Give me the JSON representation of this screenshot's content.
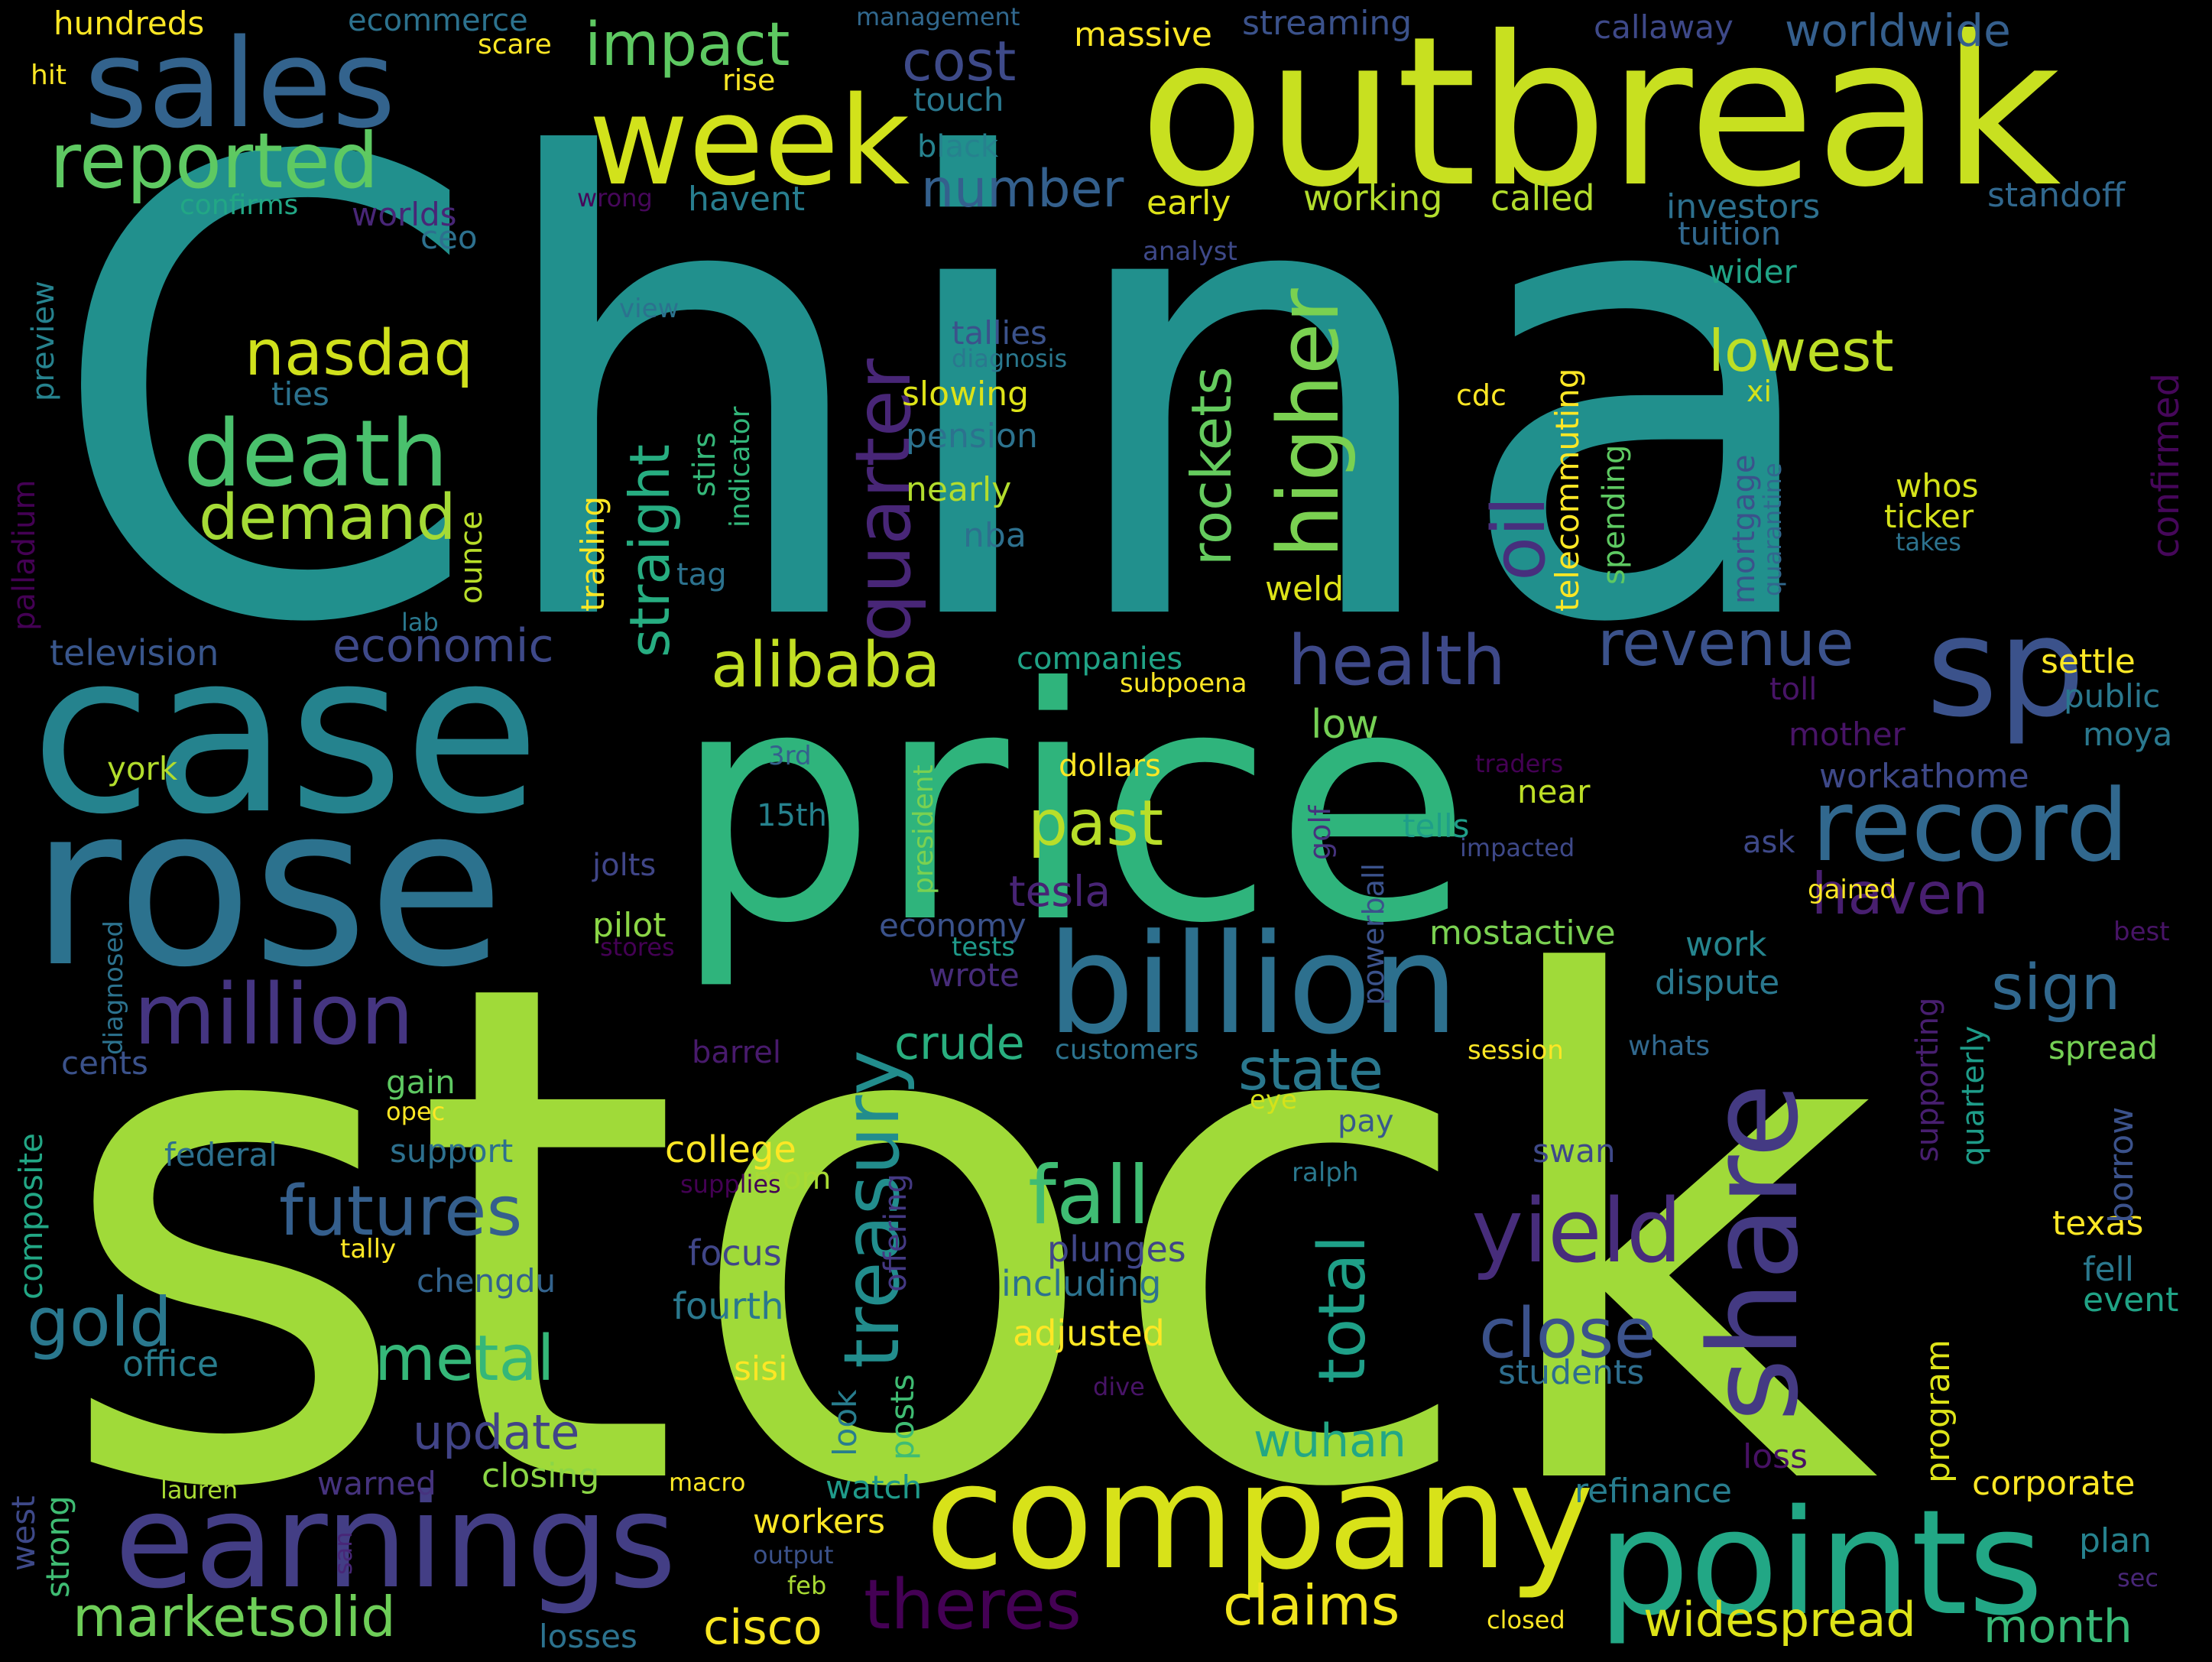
{
  "background": "#000000",
  "palette": [
    "#440154",
    "#482777",
    "#3e4989",
    "#31688e",
    "#26828e",
    "#1f9e89",
    "#35b779",
    "#6ece58",
    "#b5de2b",
    "#fde725"
  ],
  "words": [
    {
      "id": "china",
      "text": "China",
      "color": "#21908d"
    },
    {
      "id": "stock",
      "text": "stock",
      "color": "#a0da39"
    },
    {
      "id": "price",
      "text": "price",
      "color": "#2fb47c"
    },
    {
      "id": "case",
      "text": "case",
      "color": "#25838e"
    },
    {
      "id": "rose",
      "text": "rose",
      "color": "#2c728e"
    },
    {
      "id": "outbreak",
      "text": "outbreak",
      "color": "#c8e020"
    },
    {
      "id": "company",
      "text": "company",
      "color": "#d8e219"
    },
    {
      "id": "billion",
      "text": "billion",
      "color": "#2d708e"
    },
    {
      "id": "earnings",
      "text": "earnings",
      "color": "#433e85"
    },
    {
      "id": "points",
      "text": "points",
      "color": "#22a785"
    },
    {
      "id": "sales",
      "text": "sales",
      "color": "#33638d"
    },
    {
      "id": "week",
      "text": "week",
      "color": "#d2e21b"
    },
    {
      "id": "share",
      "text": "share",
      "color": "#443a83"
    },
    {
      "id": "sp",
      "text": "sp",
      "color": "#3b528b"
    },
    {
      "id": "record",
      "text": "record",
      "color": "#31688e"
    },
    {
      "id": "million",
      "text": "million",
      "color": "#453581"
    },
    {
      "id": "death",
      "text": "death",
      "color": "#4ac16d"
    },
    {
      "id": "reported",
      "text": "reported",
      "color": "#5ec962"
    },
    {
      "id": "higher",
      "text": "higher",
      "color": "#7ad151"
    },
    {
      "id": "quarter",
      "text": "quarter",
      "color": "#482677"
    },
    {
      "id": "treasury",
      "text": "treasury",
      "color": "#228d8d"
    },
    {
      "id": "yield",
      "text": "yield",
      "color": "#472d7b"
    },
    {
      "id": "fall",
      "text": "fall",
      "color": "#3fbc73"
    },
    {
      "id": "futures",
      "text": "futures",
      "color": "#355f8d"
    },
    {
      "id": "nasdaq",
      "text": "nasdaq",
      "color": "#d0e11c"
    },
    {
      "id": "demand",
      "text": "demand",
      "color": "#a5db36"
    },
    {
      "id": "alibaba",
      "text": "alibaba",
      "color": "#c2df23"
    },
    {
      "id": "health",
      "text": "health",
      "color": "#3e4989"
    },
    {
      "id": "revenue",
      "text": "revenue",
      "color": "#3b528b"
    },
    {
      "id": "close",
      "text": "close",
      "color": "#3b528b"
    },
    {
      "id": "total",
      "text": "total",
      "color": "#1fa088"
    },
    {
      "id": "impact",
      "text": "impact",
      "color": "#5ec962"
    },
    {
      "id": "oil",
      "text": "oil",
      "color": "#472f7d"
    },
    {
      "id": "past",
      "text": "past",
      "color": "#b8de29"
    },
    {
      "id": "state",
      "text": "state",
      "color": "#2a788e"
    },
    {
      "id": "haven",
      "text": "haven",
      "color": "#481f70"
    },
    {
      "id": "sign",
      "text": "sign",
      "color": "#31688e"
    },
    {
      "id": "lowest",
      "text": "lowest",
      "color": "#bddf26"
    },
    {
      "id": "cost",
      "text": "cost",
      "color": "#3e4a89"
    },
    {
      "id": "number",
      "text": "number",
      "color": "#34608d"
    },
    {
      "id": "rockets",
      "text": "rockets",
      "color": "#65cb5e"
    },
    {
      "id": "straight",
      "text": "straight",
      "color": "#27ad81"
    },
    {
      "id": "gold",
      "text": "gold",
      "color": "#2a788e"
    },
    {
      "id": "metal",
      "text": "metal",
      "color": "#35b779"
    },
    {
      "id": "theres",
      "text": "theres",
      "color": "#440154"
    },
    {
      "id": "claims",
      "text": "claims",
      "color": "#f1e51d"
    },
    {
      "id": "marketsolid",
      "text": "marketsolid",
      "color": "#6ece58"
    },
    {
      "id": "widespread",
      "text": "widespread",
      "color": "#dde318"
    },
    {
      "id": "cisco",
      "text": "cisco",
      "color": "#f8e621"
    },
    {
      "id": "month",
      "text": "month",
      "color": "#38b977"
    },
    {
      "id": "wuhan",
      "text": "wuhan",
      "color": "#22a785"
    },
    {
      "id": "update",
      "text": "update",
      "color": "#414487"
    },
    {
      "id": "economic",
      "text": "economic",
      "color": "#3e4989"
    },
    {
      "id": "worldwide",
      "text": "worldwide",
      "color": "#355f8d"
    },
    {
      "id": "crude",
      "text": "crude",
      "color": "#29af7f"
    },
    {
      "id": "tesla",
      "text": "tesla",
      "color": "#482475"
    },
    {
      "id": "confirmed",
      "text": "confirmed",
      "color": "#46075a"
    },
    {
      "id": "television",
      "text": "television",
      "color": "#39568c"
    },
    {
      "id": "college",
      "text": "college",
      "color": "#fde725"
    },
    {
      "id": "fourth",
      "text": "fourth",
      "color": "#2a788e"
    },
    {
      "id": "office",
      "text": "office",
      "color": "#287d8e"
    },
    {
      "id": "focus",
      "text": "focus",
      "color": "#404688"
    },
    {
      "id": "plunges",
      "text": "plunges",
      "color": "#404688"
    },
    {
      "id": "including",
      "text": "including",
      "color": "#2c728e"
    },
    {
      "id": "adjusted",
      "text": "adjusted",
      "color": "#fde725"
    },
    {
      "id": "students",
      "text": "students",
      "color": "#2e6e8e"
    },
    {
      "id": "texas",
      "text": "texas",
      "color": "#fde725"
    },
    {
      "id": "event",
      "text": "event",
      "color": "#20a386"
    },
    {
      "id": "fell",
      "text": "fell",
      "color": "#2a788e"
    },
    {
      "id": "borrow",
      "text": "borrow",
      "color": "#3b528b"
    },
    {
      "id": "corporate",
      "text": "corporate",
      "color": "#fde725"
    },
    {
      "id": "refinance",
      "text": "refinance",
      "color": "#287d8e"
    },
    {
      "id": "plan",
      "text": "plan",
      "color": "#26828e"
    },
    {
      "id": "program",
      "text": "program",
      "color": "#dde318"
    },
    {
      "id": "loss",
      "text": "loss",
      "color": "#471164"
    },
    {
      "id": "workers",
      "text": "workers",
      "color": "#fde725"
    },
    {
      "id": "closing",
      "text": "closing",
      "color": "#8bd646"
    },
    {
      "id": "warned",
      "text": "warned",
      "color": "#46337e"
    },
    {
      "id": "watch",
      "text": "watch",
      "color": "#1f9a8a"
    },
    {
      "id": "losses",
      "text": "losses",
      "color": "#2c728e"
    },
    {
      "id": "strong",
      "text": "strong",
      "color": "#3fbc73"
    },
    {
      "id": "west",
      "text": "west",
      "color": "#3e4989"
    },
    {
      "id": "composite",
      "text": "composite",
      "color": "#22a785"
    },
    {
      "id": "cents",
      "text": "cents",
      "color": "#3b528b"
    },
    {
      "id": "gain",
      "text": "gain",
      "color": "#5ec962"
    },
    {
      "id": "support",
      "text": "support",
      "color": "#2d708e"
    },
    {
      "id": "federal",
      "text": "federal",
      "color": "#2d708e"
    },
    {
      "id": "chengdu",
      "text": "chengdu",
      "color": "#33638d"
    },
    {
      "id": "tally",
      "text": "tally",
      "color": "#fde725"
    },
    {
      "id": "sisi",
      "text": "sisi",
      "color": "#fde725"
    },
    {
      "id": "look",
      "text": "look",
      "color": "#287d8e"
    },
    {
      "id": "posts",
      "text": "posts",
      "color": "#3fbc73"
    },
    {
      "id": "mom",
      "text": "mom",
      "color": "#a8db34"
    },
    {
      "id": "offering",
      "text": "offering",
      "color": "#443983"
    },
    {
      "id": "supplies",
      "text": "supplies",
      "color": "#440154"
    },
    {
      "id": "ralph",
      "text": "ralph",
      "color": "#2a788e"
    },
    {
      "id": "swan",
      "text": "swan",
      "color": "#3e4989"
    },
    {
      "id": "pay",
      "text": "pay",
      "color": "#38598c"
    },
    {
      "id": "eye",
      "text": "eye",
      "color": "#d5e21a"
    },
    {
      "id": "opec",
      "text": "opec",
      "color": "#fde725"
    },
    {
      "id": "barrel",
      "text": "barrel",
      "color": "#481a6c"
    },
    {
      "id": "customers",
      "text": "customers",
      "color": "#2c728e"
    },
    {
      "id": "session",
      "text": "session",
      "color": "#fde725"
    },
    {
      "id": "whats",
      "text": "whats",
      "color": "#31688e"
    },
    {
      "id": "spread",
      "text": "spread",
      "color": "#75d054"
    },
    {
      "id": "supporting",
      "text": "supporting",
      "color": "#481f70"
    },
    {
      "id": "quarterly",
      "text": "quarterly",
      "color": "#1e9c89"
    },
    {
      "id": "economy",
      "text": "economy",
      "color": "#3b528b"
    },
    {
      "id": "wrote",
      "text": "wrote",
      "color": "#472c7a"
    },
    {
      "id": "tests",
      "text": "tests",
      "color": "#1f9a8a"
    },
    {
      "id": "mostactive",
      "text": "mostactive",
      "color": "#7ad151"
    },
    {
      "id": "work",
      "text": "work",
      "color": "#25858e"
    },
    {
      "id": "dispute",
      "text": "dispute",
      "color": "#2a788e"
    },
    {
      "id": "powerball",
      "text": "powerball",
      "color": "#3b528b"
    },
    {
      "id": "golf",
      "text": "golf",
      "color": "#46337e"
    },
    {
      "id": "near",
      "text": "near",
      "color": "#bddf26"
    },
    {
      "id": "tells",
      "text": "tells",
      "color": "#1f9e89"
    },
    {
      "id": "impacted",
      "text": "impacted",
      "color": "#3e4989"
    },
    {
      "id": "ask",
      "text": "ask",
      "color": "#3e4989"
    },
    {
      "id": "gained",
      "text": "gained",
      "color": "#fde725"
    },
    {
      "id": "best",
      "text": "best",
      "color": "#481467"
    },
    {
      "id": "workathome",
      "text": "workathome",
      "color": "#3e4989"
    },
    {
      "id": "traders",
      "text": "traders",
      "color": "#440154"
    },
    {
      "id": "president",
      "text": "president",
      "color": "#7ad151"
    },
    {
      "id": "dollars",
      "text": "dollars",
      "color": "#fde725"
    },
    {
      "id": "3rd",
      "text": "3rd",
      "color": "#35608d"
    },
    {
      "id": "15th",
      "text": "15th",
      "color": "#26828e"
    },
    {
      "id": "jolts",
      "text": "jolts",
      "color": "#404688"
    },
    {
      "id": "pilot",
      "text": "pilot",
      "color": "#8bd646"
    },
    {
      "id": "stores",
      "text": "stores",
      "color": "#440154"
    },
    {
      "id": "york",
      "text": "york",
      "color": "#b2dd2d"
    },
    {
      "id": "diagnosed",
      "text": "diagnosed",
      "color": "#2c728e"
    },
    {
      "id": "tag",
      "text": "tag",
      "color": "#2c728e"
    },
    {
      "id": "ounce",
      "text": "ounce",
      "color": "#b8de29"
    },
    {
      "id": "lab",
      "text": "lab",
      "color": "#2a788e"
    },
    {
      "id": "palladium",
      "text": "palladium",
      "color": "#440154"
    },
    {
      "id": "preview",
      "text": "preview",
      "color": "#26828e"
    },
    {
      "id": "ties",
      "text": "ties",
      "color": "#2c728e"
    },
    {
      "id": "trading",
      "text": "trading",
      "color": "#fde725"
    },
    {
      "id": "stirs",
      "text": "stirs",
      "color": "#35b779"
    },
    {
      "id": "indicator",
      "text": "indicator",
      "color": "#32b67a"
    },
    {
      "id": "view",
      "text": "view",
      "color": "#2c728e"
    },
    {
      "id": "tallies",
      "text": "tallies",
      "color": "#3b528b"
    },
    {
      "id": "diagnosis",
      "text": "diagnosis",
      "color": "#2a788e"
    },
    {
      "id": "slowing",
      "text": "slowing",
      "color": "#dde318"
    },
    {
      "id": "pension",
      "text": "pension",
      "color": "#2c728e"
    },
    {
      "id": "nearly",
      "text": "nearly",
      "color": "#b2dd2d"
    },
    {
      "id": "nba",
      "text": "nba",
      "color": "#2d708e"
    },
    {
      "id": "weld",
      "text": "weld",
      "color": "#dde318"
    },
    {
      "id": "companies",
      "text": "companies",
      "color": "#20a386"
    },
    {
      "id": "subpoena",
      "text": "subpoena",
      "color": "#fde725"
    },
    {
      "id": "low",
      "text": "low",
      "color": "#75d054"
    },
    {
      "id": "hundreds",
      "text": "hundreds",
      "color": "#fde725"
    },
    {
      "id": "hit",
      "text": "hit",
      "color": "#fde725"
    },
    {
      "id": "ecommerce",
      "text": "ecommerce",
      "color": "#2c728e"
    },
    {
      "id": "scare",
      "text": "scare",
      "color": "#fde725"
    },
    {
      "id": "management",
      "text": "management",
      "color": "#31688e"
    },
    {
      "id": "rise",
      "text": "rise",
      "color": "#fde725"
    },
    {
      "id": "touch",
      "text": "touch",
      "color": "#2a788e"
    },
    {
      "id": "black",
      "text": "black",
      "color": "#26828e"
    },
    {
      "id": "massive",
      "text": "massive",
      "color": "#fde725"
    },
    {
      "id": "streaming",
      "text": "streaming",
      "color": "#3b528b"
    },
    {
      "id": "callaway",
      "text": "callaway",
      "color": "#3e4989"
    },
    {
      "id": "confirms",
      "text": "confirms",
      "color": "#22a785"
    },
    {
      "id": "worlds",
      "text": "worlds",
      "color": "#482677"
    },
    {
      "id": "wrong",
      "text": "wrong",
      "color": "#46075a"
    },
    {
      "id": "ceo",
      "text": "ceo",
      "color": "#2d708e"
    },
    {
      "id": "havent",
      "text": "havent",
      "color": "#287d8e"
    },
    {
      "id": "early",
      "text": "early",
      "color": "#dde318"
    },
    {
      "id": "working",
      "text": "working",
      "color": "#b2dd2d"
    },
    {
      "id": "called",
      "text": "called",
      "color": "#b2dd2d"
    },
    {
      "id": "investors",
      "text": "investors",
      "color": "#2d708e"
    },
    {
      "id": "standoff",
      "text": "standoff",
      "color": "#31688e"
    },
    {
      "id": "tuition",
      "text": "tuition",
      "color": "#31688e"
    },
    {
      "id": "analyst",
      "text": "analyst",
      "color": "#3e4989"
    },
    {
      "id": "wider",
      "text": "wider",
      "color": "#20a386"
    },
    {
      "id": "xi",
      "text": "xi",
      "color": "#d5e21a"
    },
    {
      "id": "cdc",
      "text": "cdc",
      "color": "#fde725"
    },
    {
      "id": "telecommuting",
      "text": "telecommuting",
      "color": "#fde725"
    },
    {
      "id": "spending",
      "text": "spending",
      "color": "#5ec962"
    },
    {
      "id": "mortgage",
      "text": "mortgage",
      "color": "#3b528b"
    },
    {
      "id": "quarantine",
      "text": "quarantine",
      "color": "#31688e"
    },
    {
      "id": "whos",
      "text": "whos",
      "color": "#d5e21a"
    },
    {
      "id": "ticker",
      "text": "ticker",
      "color": "#d5e21a"
    },
    {
      "id": "takes",
      "text": "takes",
      "color": "#2c728e"
    },
    {
      "id": "settle",
      "text": "settle",
      "color": "#fde725"
    },
    {
      "id": "toll",
      "text": "toll",
      "color": "#481467"
    },
    {
      "id": "public",
      "text": "public",
      "color": "#2a788e"
    },
    {
      "id": "moya",
      "text": "moya",
      "color": "#2a788e"
    },
    {
      "id": "mother",
      "text": "mother",
      "color": "#481467"
    },
    {
      "id": "lauren",
      "text": "lauren",
      "color": "#a8db34"
    },
    {
      "id": "macro",
      "text": "macro",
      "color": "#fde725"
    },
    {
      "id": "output",
      "text": "output",
      "color": "#3b528b"
    },
    {
      "id": "feb",
      "text": "feb",
      "color": "#a8db34"
    },
    {
      "id": "san",
      "text": "san",
      "color": "#482677"
    },
    {
      "id": "closed",
      "text": "closed",
      "color": "#fde725"
    },
    {
      "id": "sec",
      "text": "sec",
      "color": "#482677"
    },
    {
      "id": "dive",
      "text": "dive",
      "color": "#481467"
    }
  ]
}
